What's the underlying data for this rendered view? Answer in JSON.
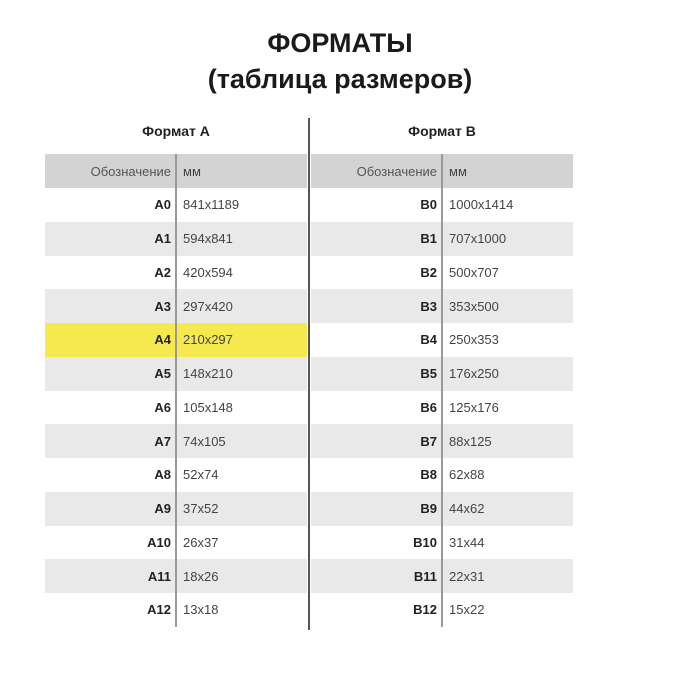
{
  "title": "ФОРМАТЫ",
  "subtitle": "(таблица размеров)",
  "highlight_color": "#f6e94f",
  "tables": [
    {
      "title": "Формат A",
      "col1": "Обозначение",
      "col2": "мм",
      "highlighted": "A4",
      "rows": [
        [
          "A0",
          "841x1189"
        ],
        [
          "A1",
          "594x841"
        ],
        [
          "A2",
          "420x594"
        ],
        [
          "A3",
          "297x420"
        ],
        [
          "A4",
          "210x297"
        ],
        [
          "A5",
          "148x210"
        ],
        [
          "A6",
          "105x148"
        ],
        [
          "A7",
          "74x105"
        ],
        [
          "A8",
          "52x74"
        ],
        [
          "A9",
          "37x52"
        ],
        [
          "A10",
          "26x37"
        ],
        [
          "A11",
          "18x26"
        ],
        [
          "A12",
          "13x18"
        ]
      ]
    },
    {
      "title": "Формат B",
      "col1": "Обозначение",
      "col2": "мм",
      "highlighted": "",
      "rows": [
        [
          "B0",
          "1000x1414"
        ],
        [
          "B1",
          "707x1000"
        ],
        [
          "B2",
          "500x707"
        ],
        [
          "B3",
          "353x500"
        ],
        [
          "B4",
          "250x353"
        ],
        [
          "B5",
          "176x250"
        ],
        [
          "B6",
          "125x176"
        ],
        [
          "B7",
          "88x125"
        ],
        [
          "B8",
          "62x88"
        ],
        [
          "B9",
          "44x62"
        ],
        [
          "B10",
          "31x44"
        ],
        [
          "B11",
          "22x31"
        ],
        [
          "B12",
          "15x22"
        ]
      ]
    }
  ]
}
